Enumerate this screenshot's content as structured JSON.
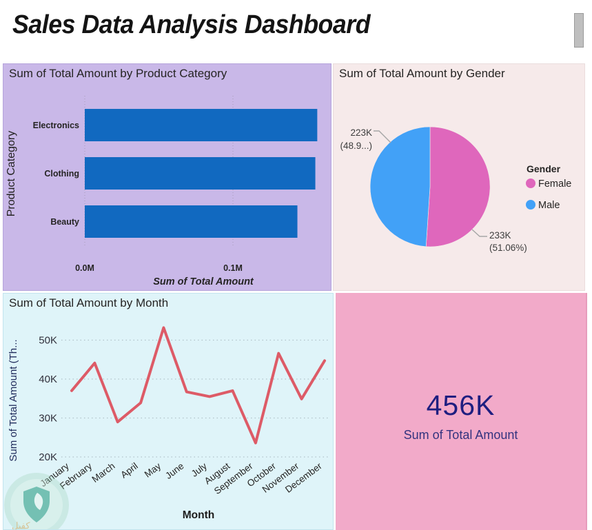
{
  "header": {
    "title": "Sales Data Analysis Dashboard"
  },
  "scrollbar": {
    "present": true
  },
  "card": {
    "value": "456K",
    "label": "Sum of Total Amount",
    "bg": "#f2aac9",
    "text_color": "#1e1e80"
  },
  "watermark": {
    "text": "كفيل"
  },
  "colors": {
    "bar_panel_bg": "#c9b8e8",
    "pie_panel_bg": "#f6eaea",
    "line_panel_bg": "#dff4f9",
    "card_bg": "#f2aac9",
    "bar_fill": "#1169c0",
    "pie_female": "#df67bc",
    "pie_male": "#42a1f7",
    "line_stroke": "#dd5b67"
  },
  "chart_data": [
    {
      "type": "bar",
      "orientation": "horizontal",
      "title": "Sum of Total Amount by Product Category",
      "categories": [
        "Electronics",
        "Clothing",
        "Beauty"
      ],
      "values": [
        156900,
        155600,
        143500
      ],
      "xlabel": "Sum of Total Amount",
      "ylabel": "Product Category",
      "x_ticks": [
        "0.0M",
        "0.1M"
      ],
      "x_tick_values": [
        0,
        100000
      ],
      "xlim": [
        0,
        165000
      ],
      "grid": "dotted-vertical",
      "bar_color": "#1169c0"
    },
    {
      "type": "pie",
      "title": "Sum of Total Amount by Gender",
      "legend_title": "Gender",
      "legend_position": "right",
      "slices": [
        {
          "name": "Female",
          "value": 233000,
          "pct": 51.06,
          "color": "#df67bc",
          "label_lines": [
            "233K",
            "(51.06%)"
          ]
        },
        {
          "name": "Male",
          "value": 223000,
          "pct": 48.94,
          "color": "#42a1f7",
          "label_lines": [
            "223K",
            "(48.9...)"
          ]
        }
      ]
    },
    {
      "type": "line",
      "title": "Sum of Total Amount by Month",
      "x": [
        "January",
        "February",
        "March",
        "April",
        "May",
        "June",
        "July",
        "August",
        "September",
        "October",
        "November",
        "December"
      ],
      "values": [
        37000,
        44100,
        29000,
        33900,
        53200,
        36700,
        35500,
        37000,
        23600,
        46600,
        34900,
        44700
      ],
      "xlabel": "Month",
      "ylabel": "Sum of Total Amount (Th...",
      "y_ticks": [
        "20K",
        "30K",
        "40K",
        "50K"
      ],
      "y_tick_values": [
        20000,
        30000,
        40000,
        50000
      ],
      "ylim": [
        20000,
        55000
      ],
      "grid": "dotted-horizontal",
      "line_color": "#dd5b67"
    }
  ]
}
